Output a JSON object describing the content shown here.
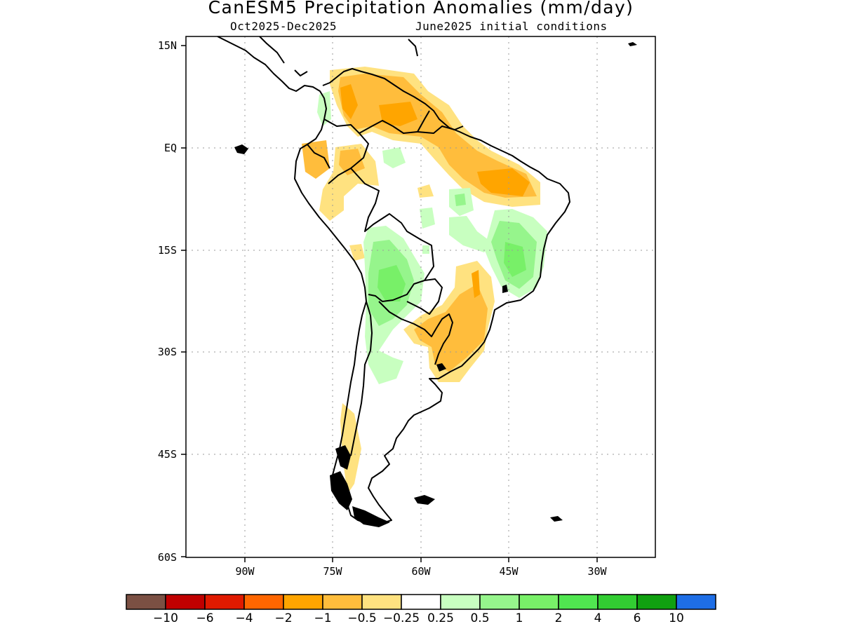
{
  "title": "CanESM5 Precipitation Anomalies (mm/day)",
  "subtitle_left": "Oct2025-Dec2025",
  "subtitle_right": "June2025 initial conditions",
  "map": {
    "lon_range": [
      -100,
      -20
    ],
    "lat_range": [
      -60,
      15
    ],
    "lat_ticks": [
      {
        "value": 15,
        "label": "15N"
      },
      {
        "value": 0,
        "label": "EQ"
      },
      {
        "value": -15,
        "label": "15S"
      },
      {
        "value": -30,
        "label": "30S"
      },
      {
        "value": -45,
        "label": "45S"
      },
      {
        "value": -60,
        "label": "60S"
      }
    ],
    "lon_ticks": [
      {
        "value": -90,
        "label": "90W"
      },
      {
        "value": -75,
        "label": "75W"
      },
      {
        "value": -60,
        "label": "60W"
      },
      {
        "value": -45,
        "label": "45W"
      },
      {
        "value": -30,
        "label": "30W"
      }
    ],
    "grid": "dotted"
  },
  "colorbar": {
    "colors": [
      "#7b5043",
      "#c00000",
      "#e01a00",
      "#ff6600",
      "#ffa500",
      "#ffbd3c",
      "#ffe280",
      "#ffffff",
      "#c8ffc0",
      "#96f58c",
      "#78f068",
      "#50e650",
      "#32cd32",
      "#10a010",
      "#1e6ee6"
    ],
    "labels": [
      "-10",
      "-6",
      "-4",
      "-2",
      "-1",
      "-0.5",
      "-0.25",
      "0.25",
      "0.5",
      "1",
      "2",
      "4",
      "6",
      "10"
    ]
  }
}
